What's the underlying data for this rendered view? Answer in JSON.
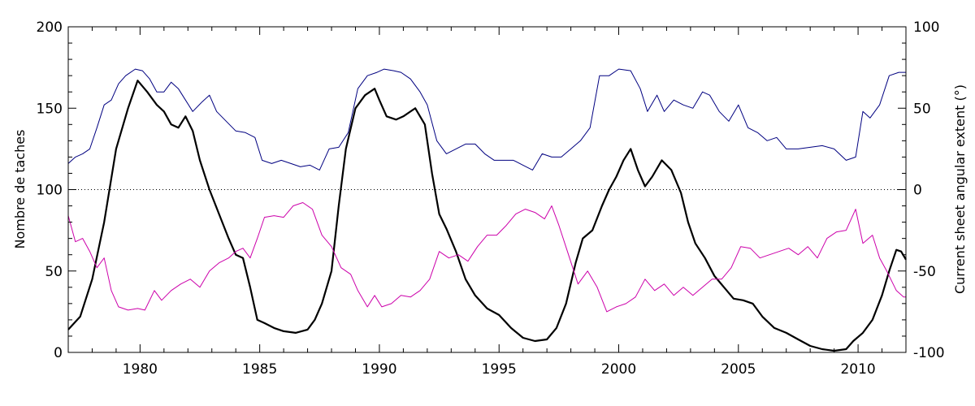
{
  "chart_data": {
    "type": "line",
    "title": "",
    "xlabel": "",
    "ylabel_left": "Nombre de taches",
    "ylabel_right": "Current sheet angular extent (°)",
    "xlim": [
      1977.0,
      2012.0
    ],
    "ylim_left": [
      0,
      200
    ],
    "ylim_right": [
      -100,
      100
    ],
    "x_ticks": [
      "1980",
      "1985",
      "1990",
      "1995",
      "2000",
      "2005",
      "2010"
    ],
    "y_left_ticks": [
      "0",
      "50",
      "100",
      "150",
      "200"
    ],
    "y_right_ticks": [
      "-100",
      "-50",
      "0",
      "50",
      "100"
    ],
    "reference_line": {
      "axis": "right",
      "value": 0,
      "style": "dotted"
    },
    "grid": false,
    "series": [
      {
        "axis": "left",
        "color": "#000000",
        "width": 2.2,
        "points": [
          [
            1977.0,
            14
          ],
          [
            1977.5,
            22
          ],
          [
            1978.0,
            45
          ],
          [
            1978.5,
            80
          ],
          [
            1979.0,
            125
          ],
          [
            1979.5,
            150
          ],
          [
            1979.9,
            167
          ],
          [
            1980.3,
            160
          ],
          [
            1980.7,
            152
          ],
          [
            1981.0,
            148
          ],
          [
            1981.3,
            140
          ],
          [
            1981.6,
            138
          ],
          [
            1981.9,
            145
          ],
          [
            1982.2,
            136
          ],
          [
            1982.5,
            118
          ],
          [
            1982.9,
            100
          ],
          [
            1983.3,
            85
          ],
          [
            1983.7,
            70
          ],
          [
            1984.0,
            60
          ],
          [
            1984.3,
            58
          ],
          [
            1984.6,
            40
          ],
          [
            1984.9,
            20
          ],
          [
            1985.2,
            18
          ],
          [
            1985.6,
            15
          ],
          [
            1986.0,
            13
          ],
          [
            1986.5,
            12
          ],
          [
            1987.0,
            14
          ],
          [
            1987.3,
            20
          ],
          [
            1987.6,
            30
          ],
          [
            1988.0,
            50
          ],
          [
            1988.3,
            90
          ],
          [
            1988.6,
            125
          ],
          [
            1989.0,
            150
          ],
          [
            1989.4,
            158
          ],
          [
            1989.8,
            162
          ],
          [
            1990.0,
            155
          ],
          [
            1990.3,
            145
          ],
          [
            1990.7,
            143
          ],
          [
            1991.0,
            145
          ],
          [
            1991.5,
            150
          ],
          [
            1991.9,
            140
          ],
          [
            1992.2,
            110
          ],
          [
            1992.5,
            85
          ],
          [
            1992.8,
            76
          ],
          [
            1993.2,
            62
          ],
          [
            1993.6,
            45
          ],
          [
            1994.0,
            35
          ],
          [
            1994.5,
            27
          ],
          [
            1995.0,
            23
          ],
          [
            1995.5,
            15
          ],
          [
            1996.0,
            9
          ],
          [
            1996.5,
            7
          ],
          [
            1997.0,
            8
          ],
          [
            1997.4,
            15
          ],
          [
            1997.8,
            30
          ],
          [
            1998.2,
            55
          ],
          [
            1998.5,
            70
          ],
          [
            1998.9,
            75
          ],
          [
            1999.3,
            90
          ],
          [
            1999.6,
            100
          ],
          [
            1999.9,
            108
          ],
          [
            2000.2,
            118
          ],
          [
            2000.5,
            125
          ],
          [
            2000.8,
            112
          ],
          [
            2001.1,
            102
          ],
          [
            2001.4,
            108
          ],
          [
            2001.8,
            118
          ],
          [
            2002.2,
            112
          ],
          [
            2002.6,
            98
          ],
          [
            2002.9,
            80
          ],
          [
            2003.2,
            67
          ],
          [
            2003.6,
            58
          ],
          [
            2004.0,
            47
          ],
          [
            2004.4,
            40
          ],
          [
            2004.8,
            33
          ],
          [
            2005.2,
            32
          ],
          [
            2005.6,
            30
          ],
          [
            2006.0,
            22
          ],
          [
            2006.5,
            15
          ],
          [
            2007.0,
            12
          ],
          [
            2007.5,
            8
          ],
          [
            2008.0,
            4
          ],
          [
            2008.5,
            2
          ],
          [
            2009.0,
            1
          ],
          [
            2009.5,
            2
          ],
          [
            2009.8,
            7
          ],
          [
            2010.2,
            12
          ],
          [
            2010.6,
            20
          ],
          [
            2011.0,
            35
          ],
          [
            2011.3,
            50
          ],
          [
            2011.6,
            63
          ],
          [
            2011.8,
            62
          ],
          [
            2012.0,
            57
          ]
        ]
      },
      {
        "axis": "right",
        "color": "#000080",
        "width": 1,
        "points": [
          [
            1977.0,
            16
          ],
          [
            1977.3,
            20
          ],
          [
            1977.6,
            22
          ],
          [
            1977.9,
            25
          ],
          [
            1978.2,
            38
          ],
          [
            1978.5,
            52
          ],
          [
            1978.8,
            55
          ],
          [
            1979.1,
            65
          ],
          [
            1979.4,
            70
          ],
          [
            1979.8,
            74
          ],
          [
            1980.1,
            73
          ],
          [
            1980.4,
            68
          ],
          [
            1980.7,
            60
          ],
          [
            1981.0,
            60
          ],
          [
            1981.3,
            66
          ],
          [
            1981.6,
            62
          ],
          [
            1981.9,
            55
          ],
          [
            1982.2,
            48
          ],
          [
            1982.6,
            54
          ],
          [
            1982.9,
            58
          ],
          [
            1983.2,
            48
          ],
          [
            1983.6,
            42
          ],
          [
            1984.0,
            36
          ],
          [
            1984.4,
            35
          ],
          [
            1984.8,
            32
          ],
          [
            1985.1,
            18
          ],
          [
            1985.5,
            16
          ],
          [
            1985.9,
            18
          ],
          [
            1986.3,
            16
          ],
          [
            1986.7,
            14
          ],
          [
            1987.1,
            15
          ],
          [
            1987.5,
            12
          ],
          [
            1987.9,
            25
          ],
          [
            1988.3,
            26
          ],
          [
            1988.7,
            35
          ],
          [
            1989.1,
            62
          ],
          [
            1989.5,
            70
          ],
          [
            1989.9,
            72
          ],
          [
            1990.2,
            74
          ],
          [
            1990.6,
            73
          ],
          [
            1990.9,
            72
          ],
          [
            1991.3,
            68
          ],
          [
            1991.7,
            60
          ],
          [
            1992.0,
            52
          ],
          [
            1992.4,
            30
          ],
          [
            1992.8,
            22
          ],
          [
            1993.2,
            25
          ],
          [
            1993.6,
            28
          ],
          [
            1994.0,
            28
          ],
          [
            1994.4,
            22
          ],
          [
            1994.8,
            18
          ],
          [
            1995.2,
            18
          ],
          [
            1995.6,
            18
          ],
          [
            1996.0,
            15
          ],
          [
            1996.4,
            12
          ],
          [
            1996.8,
            22
          ],
          [
            1997.2,
            20
          ],
          [
            1997.6,
            20
          ],
          [
            1998.0,
            25
          ],
          [
            1998.4,
            30
          ],
          [
            1998.8,
            38
          ],
          [
            1999.2,
            70
          ],
          [
            1999.6,
            70
          ],
          [
            2000.0,
            74
          ],
          [
            2000.5,
            73
          ],
          [
            2000.9,
            62
          ],
          [
            2001.2,
            48
          ],
          [
            2001.6,
            58
          ],
          [
            2001.9,
            48
          ],
          [
            2002.3,
            55
          ],
          [
            2002.7,
            52
          ],
          [
            2003.1,
            50
          ],
          [
            2003.5,
            60
          ],
          [
            2003.8,
            58
          ],
          [
            2004.2,
            48
          ],
          [
            2004.6,
            42
          ],
          [
            2005.0,
            52
          ],
          [
            2005.4,
            38
          ],
          [
            2005.8,
            35
          ],
          [
            2006.2,
            30
          ],
          [
            2006.6,
            32
          ],
          [
            2007.0,
            25
          ],
          [
            2007.5,
            25
          ],
          [
            2008.0,
            26
          ],
          [
            2008.5,
            27
          ],
          [
            2009.0,
            25
          ],
          [
            2009.5,
            18
          ],
          [
            2009.9,
            20
          ],
          [
            2010.2,
            48
          ],
          [
            2010.5,
            44
          ],
          [
            2010.9,
            52
          ],
          [
            2011.3,
            70
          ],
          [
            2011.7,
            72
          ],
          [
            2012.0,
            72
          ]
        ]
      },
      {
        "axis": "right",
        "color": "#cc00aa",
        "width": 1,
        "points": [
          [
            1977.0,
            -16
          ],
          [
            1977.3,
            -32
          ],
          [
            1977.6,
            -30
          ],
          [
            1977.9,
            -38
          ],
          [
            1978.2,
            -48
          ],
          [
            1978.5,
            -42
          ],
          [
            1978.8,
            -62
          ],
          [
            1979.1,
            -72
          ],
          [
            1979.5,
            -74
          ],
          [
            1979.9,
            -73
          ],
          [
            1980.2,
            -74
          ],
          [
            1980.6,
            -62
          ],
          [
            1980.9,
            -68
          ],
          [
            1981.3,
            -62
          ],
          [
            1981.7,
            -58
          ],
          [
            1982.1,
            -55
          ],
          [
            1982.5,
            -60
          ],
          [
            1982.9,
            -50
          ],
          [
            1983.3,
            -45
          ],
          [
            1983.7,
            -42
          ],
          [
            1984.0,
            -38
          ],
          [
            1984.3,
            -36
          ],
          [
            1984.6,
            -42
          ],
          [
            1984.9,
            -30
          ],
          [
            1985.2,
            -17
          ],
          [
            1985.6,
            -16
          ],
          [
            1986.0,
            -17
          ],
          [
            1986.4,
            -10
          ],
          [
            1986.8,
            -8
          ],
          [
            1987.2,
            -12
          ],
          [
            1987.6,
            -28
          ],
          [
            1988.0,
            -35
          ],
          [
            1988.4,
            -48
          ],
          [
            1988.8,
            -52
          ],
          [
            1989.1,
            -62
          ],
          [
            1989.5,
            -72
          ],
          [
            1989.8,
            -65
          ],
          [
            1990.1,
            -72
          ],
          [
            1990.5,
            -70
          ],
          [
            1990.9,
            -65
          ],
          [
            1991.3,
            -66
          ],
          [
            1991.7,
            -62
          ],
          [
            1992.1,
            -55
          ],
          [
            1992.5,
            -38
          ],
          [
            1992.9,
            -42
          ],
          [
            1993.3,
            -40
          ],
          [
            1993.7,
            -44
          ],
          [
            1994.1,
            -35
          ],
          [
            1994.5,
            -28
          ],
          [
            1994.9,
            -28
          ],
          [
            1995.3,
            -22
          ],
          [
            1995.7,
            -15
          ],
          [
            1996.1,
            -12
          ],
          [
            1996.5,
            -14
          ],
          [
            1996.9,
            -18
          ],
          [
            1997.2,
            -10
          ],
          [
            1997.5,
            -22
          ],
          [
            1997.9,
            -40
          ],
          [
            1998.3,
            -58
          ],
          [
            1998.7,
            -50
          ],
          [
            1999.1,
            -60
          ],
          [
            1999.5,
            -75
          ],
          [
            1999.9,
            -72
          ],
          [
            2000.3,
            -70
          ],
          [
            2000.7,
            -66
          ],
          [
            2001.1,
            -55
          ],
          [
            2001.5,
            -62
          ],
          [
            2001.9,
            -58
          ],
          [
            2002.3,
            -65
          ],
          [
            2002.7,
            -60
          ],
          [
            2003.1,
            -65
          ],
          [
            2003.5,
            -60
          ],
          [
            2003.9,
            -55
          ],
          [
            2004.3,
            -55
          ],
          [
            2004.7,
            -48
          ],
          [
            2005.1,
            -35
          ],
          [
            2005.5,
            -36
          ],
          [
            2005.9,
            -42
          ],
          [
            2006.3,
            -40
          ],
          [
            2006.7,
            -38
          ],
          [
            2007.1,
            -36
          ],
          [
            2007.5,
            -40
          ],
          [
            2007.9,
            -35
          ],
          [
            2008.3,
            -42
          ],
          [
            2008.7,
            -30
          ],
          [
            2009.1,
            -26
          ],
          [
            2009.5,
            -25
          ],
          [
            2009.9,
            -12
          ],
          [
            2010.2,
            -33
          ],
          [
            2010.6,
            -28
          ],
          [
            2010.9,
            -42
          ],
          [
            2011.2,
            -50
          ],
          [
            2011.6,
            -62
          ],
          [
            2011.9,
            -66
          ],
          [
            2012.0,
            -66
          ]
        ]
      }
    ]
  }
}
